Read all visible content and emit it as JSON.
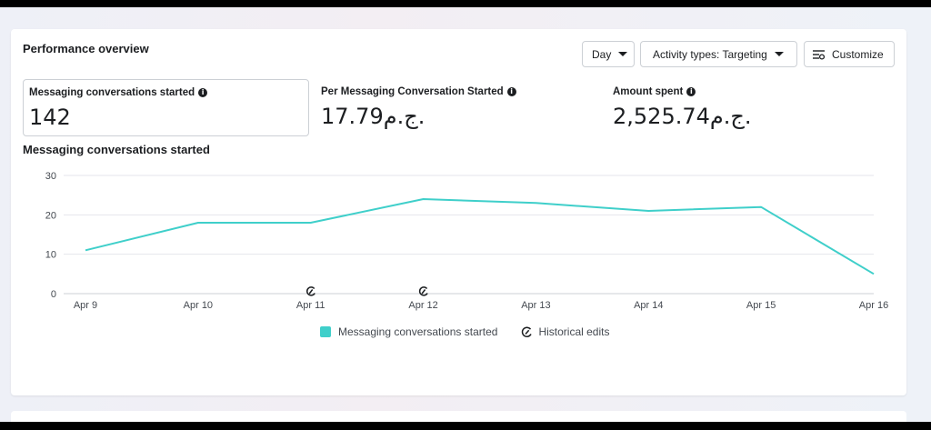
{
  "card": {
    "title": "Performance overview"
  },
  "toolbar": {
    "day_label": "Day",
    "activity_label": "Activity types: Targeting",
    "customize_label": "Customize",
    "customize_icon": "sliders-icon"
  },
  "metrics": [
    {
      "label": "Messaging conversations started",
      "value": "142",
      "selected": true
    },
    {
      "label": "Per Messaging Conversation Started",
      "value": "17.79ج.م."
    },
    {
      "label": "Amount spent",
      "value": "2,525.74ج.م."
    }
  ],
  "chart_title": "Messaging conversations started",
  "legend": {
    "series_label": "Messaging conversations started",
    "historical_label": "Historical edits",
    "series_color": "#3fcfca"
  },
  "chart_data": {
    "type": "line",
    "categories": [
      "Apr 9",
      "Apr 10",
      "Apr 11",
      "Apr 12",
      "Apr 13",
      "Apr 14",
      "Apr 15",
      "Apr 16"
    ],
    "series": [
      {
        "name": "Messaging conversations started",
        "values": [
          11,
          18,
          18,
          24,
          23,
          21,
          22,
          5
        ]
      }
    ],
    "ylim": [
      0,
      30
    ],
    "yticks": [
      0,
      10,
      20,
      30
    ],
    "grid": true,
    "historical_edit_markers": [
      "Apr 11",
      "Apr 12"
    ],
    "color": "#3fcfca"
  }
}
